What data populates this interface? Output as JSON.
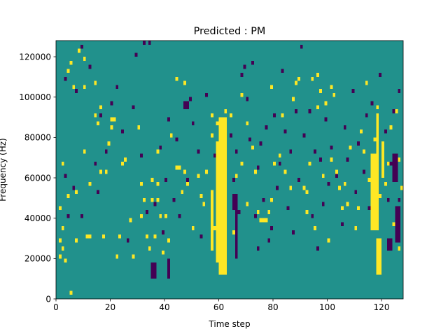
{
  "chart_data": {
    "type": "heatmap",
    "title": "Predicted : PM",
    "xlabel": "Time step",
    "ylabel": "Frequency (Hz)",
    "xlim": [
      0,
      128
    ],
    "ylim": [
      0,
      128000
    ],
    "x_ticks": [
      0,
      20,
      40,
      60,
      80,
      100,
      120
    ],
    "x_tick_labels": [
      "0",
      "20",
      "40",
      "60",
      "80",
      "100",
      "120"
    ],
    "y_ticks": [
      0,
      20000,
      40000,
      60000,
      80000,
      100000,
      120000
    ],
    "y_tick_labels": [
      "0",
      "20000",
      "40000",
      "60000",
      "80000",
      "100000",
      "120000"
    ],
    "grid": false,
    "colormap": "viridis",
    "colors": {
      "background": "#21918c",
      "high": "#fde725",
      "low": "#440154"
    },
    "mel_bins": 64,
    "dominant_value": "mid",
    "high_cells": [
      [
        1,
        10
      ],
      [
        1,
        14
      ],
      [
        1,
        22
      ],
      [
        2,
        12
      ],
      [
        2,
        17
      ],
      [
        2,
        33
      ],
      [
        3,
        9
      ],
      [
        4,
        25
      ],
      [
        4,
        56
      ],
      [
        5,
        1
      ],
      [
        5,
        58
      ],
      [
        6,
        52
      ],
      [
        7,
        14
      ],
      [
        7,
        26
      ],
      [
        8,
        61
      ],
      [
        10,
        36
      ],
      [
        10,
        52
      ],
      [
        10,
        59
      ],
      [
        11,
        15
      ],
      [
        12,
        15
      ],
      [
        12,
        28
      ],
      [
        14,
        45
      ],
      [
        14,
        53
      ],
      [
        15,
        43
      ],
      [
        16,
        31
      ],
      [
        16,
        47
      ],
      [
        17,
        15
      ],
      [
        18,
        31
      ],
      [
        19,
        38
      ],
      [
        20,
        42
      ],
      [
        20,
        44
      ],
      [
        21,
        44
      ],
      [
        22,
        10
      ],
      [
        23,
        15
      ],
      [
        24,
        33
      ],
      [
        25,
        34
      ],
      [
        27,
        19
      ],
      [
        28,
        10
      ],
      [
        30,
        42
      ],
      [
        31,
        20
      ],
      [
        31,
        28
      ],
      [
        32,
        24
      ],
      [
        33,
        15
      ],
      [
        34,
        12
      ],
      [
        35,
        24
      ],
      [
        35,
        29
      ],
      [
        36,
        15
      ],
      [
        37,
        24
      ],
      [
        37,
        28
      ],
      [
        37,
        36
      ],
      [
        38,
        20
      ],
      [
        39,
        11
      ],
      [
        40,
        20
      ],
      [
        41,
        14
      ],
      [
        42,
        40
      ],
      [
        44,
        32
      ],
      [
        44,
        54
      ],
      [
        45,
        32
      ],
      [
        46,
        26
      ],
      [
        47,
        31
      ],
      [
        47,
        53
      ],
      [
        48,
        28
      ],
      [
        50,
        17
      ],
      [
        52,
        30
      ],
      [
        53,
        25
      ],
      [
        54,
        23
      ],
      [
        55,
        31
      ],
      [
        57,
        40
      ],
      [
        57,
        45
      ],
      [
        58,
        17
      ],
      [
        59,
        43
      ],
      [
        61,
        32
      ],
      [
        62,
        46
      ],
      [
        64,
        45
      ],
      [
        65,
        16
      ],
      [
        66,
        30
      ],
      [
        68,
        33
      ],
      [
        68,
        50
      ],
      [
        70,
        23
      ],
      [
        70,
        43
      ],
      [
        72,
        37
      ],
      [
        73,
        31
      ],
      [
        74,
        21
      ],
      [
        75,
        19
      ],
      [
        76,
        19
      ],
      [
        77,
        19
      ],
      [
        78,
        21
      ],
      [
        79,
        24
      ],
      [
        79,
        52
      ],
      [
        80,
        33
      ],
      [
        82,
        35
      ],
      [
        83,
        45
      ],
      [
        84,
        31
      ],
      [
        86,
        27
      ],
      [
        87,
        49
      ],
      [
        88,
        53
      ],
      [
        89,
        54
      ],
      [
        91,
        27
      ],
      [
        92,
        21
      ],
      [
        92,
        26
      ],
      [
        93,
        33
      ],
      [
        94,
        54
      ],
      [
        95,
        17
      ],
      [
        96,
        47
      ],
      [
        96,
        55
      ],
      [
        97,
        51
      ],
      [
        98,
        30
      ],
      [
        99,
        48
      ],
      [
        100,
        14
      ],
      [
        101,
        52
      ],
      [
        101,
        34
      ],
      [
        102,
        50
      ],
      [
        103,
        31
      ],
      [
        104,
        27
      ],
      [
        105,
        22
      ],
      [
        106,
        28
      ],
      [
        107,
        23
      ],
      [
        108,
        37
      ],
      [
        110,
        17
      ],
      [
        111,
        22
      ],
      [
        112,
        41
      ],
      [
        113,
        36
      ],
      [
        114,
        53
      ],
      [
        115,
        29
      ],
      [
        117,
        32
      ],
      [
        117,
        39
      ],
      [
        118,
        47
      ],
      [
        119,
        25
      ],
      [
        121,
        28
      ],
      [
        122,
        33
      ],
      [
        123,
        42
      ],
      [
        124,
        18
      ],
      [
        125,
        46
      ],
      [
        126,
        12
      ],
      [
        126,
        34
      ],
      [
        127,
        27
      ]
    ],
    "high_bands": [
      {
        "x_start": 60,
        "x_end": 63,
        "bin_start": 6,
        "bin_end": 44
      },
      {
        "x_start": 59,
        "x_end": 60,
        "bin_start": 9,
        "bin_end": 38
      },
      {
        "x_start": 57,
        "x_end": 58,
        "bin_start": 12,
        "bin_end": 26
      },
      {
        "x_start": 116,
        "x_end": 119,
        "bin_start": 17,
        "bin_end": 35
      },
      {
        "x_start": 118,
        "x_end": 120,
        "bin_start": 6,
        "bin_end": 14
      },
      {
        "x_start": 118,
        "x_end": 119,
        "bin_start": 20,
        "bin_end": 45
      },
      {
        "x_start": 120,
        "x_end": 121,
        "bin_start": 30,
        "bin_end": 38
      }
    ],
    "low_cells": [
      [
        3,
        30
      ],
      [
        3,
        54
      ],
      [
        4,
        20
      ],
      [
        6,
        27
      ],
      [
        7,
        51
      ],
      [
        9,
        20
      ],
      [
        9,
        62
      ],
      [
        12,
        57
      ],
      [
        14,
        33
      ],
      [
        15,
        26
      ],
      [
        16,
        45
      ],
      [
        18,
        36
      ],
      [
        20,
        48
      ],
      [
        22,
        52
      ],
      [
        24,
        41
      ],
      [
        26,
        14
      ],
      [
        28,
        47
      ],
      [
        29,
        60
      ],
      [
        31,
        35
      ],
      [
        32,
        63
      ],
      [
        33,
        21
      ],
      [
        34,
        63
      ],
      [
        36,
        23
      ],
      [
        38,
        37
      ],
      [
        39,
        16
      ],
      [
        40,
        29
      ],
      [
        41,
        44
      ],
      [
        43,
        24
      ],
      [
        44,
        39
      ],
      [
        45,
        20
      ],
      [
        48,
        29
      ],
      [
        49,
        49
      ],
      [
        50,
        43
      ],
      [
        52,
        36
      ],
      [
        53,
        15
      ],
      [
        55,
        50
      ],
      [
        57,
        25
      ],
      [
        58,
        35
      ],
      [
        60,
        44
      ],
      [
        62,
        28
      ],
      [
        64,
        40
      ],
      [
        65,
        29
      ],
      [
        66,
        36
      ],
      [
        67,
        21
      ],
      [
        68,
        55
      ],
      [
        69,
        57
      ],
      [
        70,
        49
      ],
      [
        71,
        39
      ],
      [
        72,
        58
      ],
      [
        73,
        20
      ],
      [
        74,
        12
      ],
      [
        74,
        32
      ],
      [
        75,
        38
      ],
      [
        76,
        24
      ],
      [
        77,
        42
      ],
      [
        78,
        14
      ],
      [
        79,
        17
      ],
      [
        80,
        45
      ],
      [
        81,
        27
      ],
      [
        82,
        33
      ],
      [
        83,
        56
      ],
      [
        84,
        41
      ],
      [
        85,
        22
      ],
      [
        86,
        36
      ],
      [
        87,
        16
      ],
      [
        88,
        46
      ],
      [
        89,
        29
      ],
      [
        90,
        62
      ],
      [
        91,
        40
      ],
      [
        93,
        46
      ],
      [
        94,
        20
      ],
      [
        95,
        36
      ],
      [
        96,
        12
      ],
      [
        97,
        34
      ],
      [
        98,
        23
      ],
      [
        99,
        44
      ],
      [
        100,
        28
      ],
      [
        101,
        37
      ],
      [
        103,
        30
      ],
      [
        105,
        18
      ],
      [
        106,
        42
      ],
      [
        107,
        34
      ],
      [
        109,
        51
      ],
      [
        110,
        26
      ],
      [
        111,
        38
      ],
      [
        113,
        31
      ],
      [
        114,
        45
      ],
      [
        115,
        22
      ],
      [
        116,
        48
      ],
      [
        117,
        28
      ],
      [
        118,
        35
      ],
      [
        119,
        55
      ],
      [
        121,
        41
      ],
      [
        122,
        24
      ],
      [
        123,
        33
      ],
      [
        124,
        46
      ],
      [
        126,
        24
      ],
      [
        126,
        51
      ]
    ],
    "low_bands": [
      {
        "x_start": 47,
        "x_end": 49,
        "bin_start": 47,
        "bin_end": 48
      },
      {
        "x_start": 65,
        "x_end": 67,
        "bin_start": 22,
        "bin_end": 25
      },
      {
        "x_start": 66,
        "x_end": 67,
        "bin_start": 10,
        "bin_end": 21
      },
      {
        "x_start": 35,
        "x_end": 37,
        "bin_start": 5,
        "bin_end": 8
      },
      {
        "x_start": 41,
        "x_end": 42,
        "bin_start": 5,
        "bin_end": 9
      },
      {
        "x_start": 124,
        "x_end": 126,
        "bin_start": 29,
        "bin_end": 35
      },
      {
        "x_start": 125,
        "x_end": 127,
        "bin_start": 14,
        "bin_end": 22
      },
      {
        "x_start": 122,
        "x_end": 124,
        "bin_start": 12,
        "bin_end": 14
      }
    ]
  }
}
